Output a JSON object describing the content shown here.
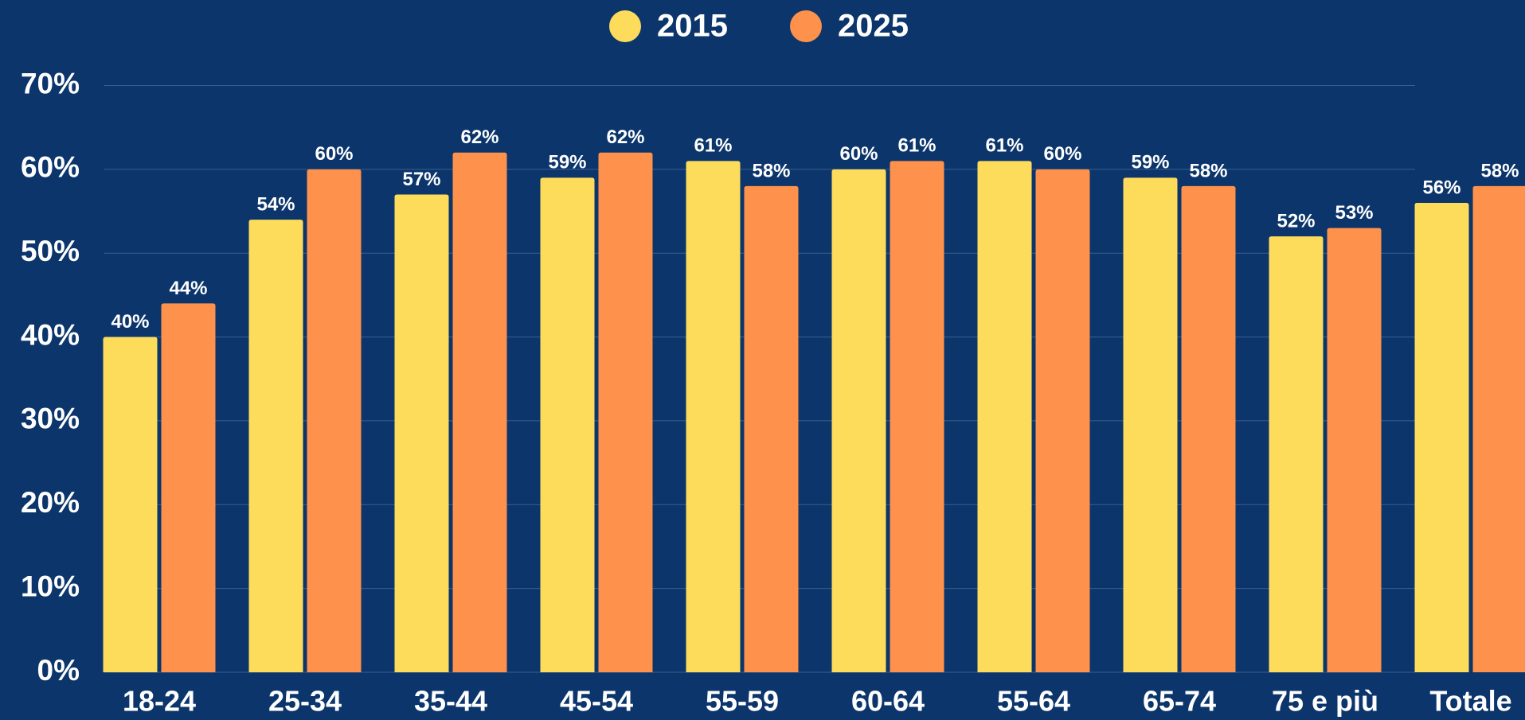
{
  "chart_data": {
    "type": "bar",
    "categories": [
      "18-24",
      "25-34",
      "35-44",
      "45-54",
      "55-59",
      "60-64",
      "55-64",
      "65-74",
      "75 e più",
      "Totale"
    ],
    "series": [
      {
        "name": "2015",
        "color": "#fddc5c",
        "values": [
          40,
          54,
          57,
          59,
          61,
          60,
          61,
          59,
          52,
          56
        ],
        "value_labels": [
          "40%",
          "54%",
          "57%",
          "59%",
          "61%",
          "60%",
          "61%",
          "59%",
          "52%",
          "56%"
        ]
      },
      {
        "name": "2025",
        "color": "#fe914b",
        "values": [
          44,
          60,
          62,
          62,
          58,
          61,
          60,
          58,
          53,
          58
        ],
        "value_labels": [
          "44%",
          "60%",
          "62%",
          "62%",
          "58%",
          "61%",
          "60%",
          "58%",
          "53%",
          "58%"
        ]
      }
    ],
    "ylim": [
      0,
      70
    ],
    "yticks": [
      {
        "value": 0,
        "label": "0%"
      },
      {
        "value": 10,
        "label": "10%"
      },
      {
        "value": 20,
        "label": "20%"
      },
      {
        "value": 30,
        "label": "30%"
      },
      {
        "value": 40,
        "label": "40%"
      },
      {
        "value": 50,
        "label": "50%"
      },
      {
        "value": 60,
        "label": "60%"
      },
      {
        "value": 70,
        "label": "70%"
      }
    ],
    "grid": true,
    "legend": "top"
  }
}
